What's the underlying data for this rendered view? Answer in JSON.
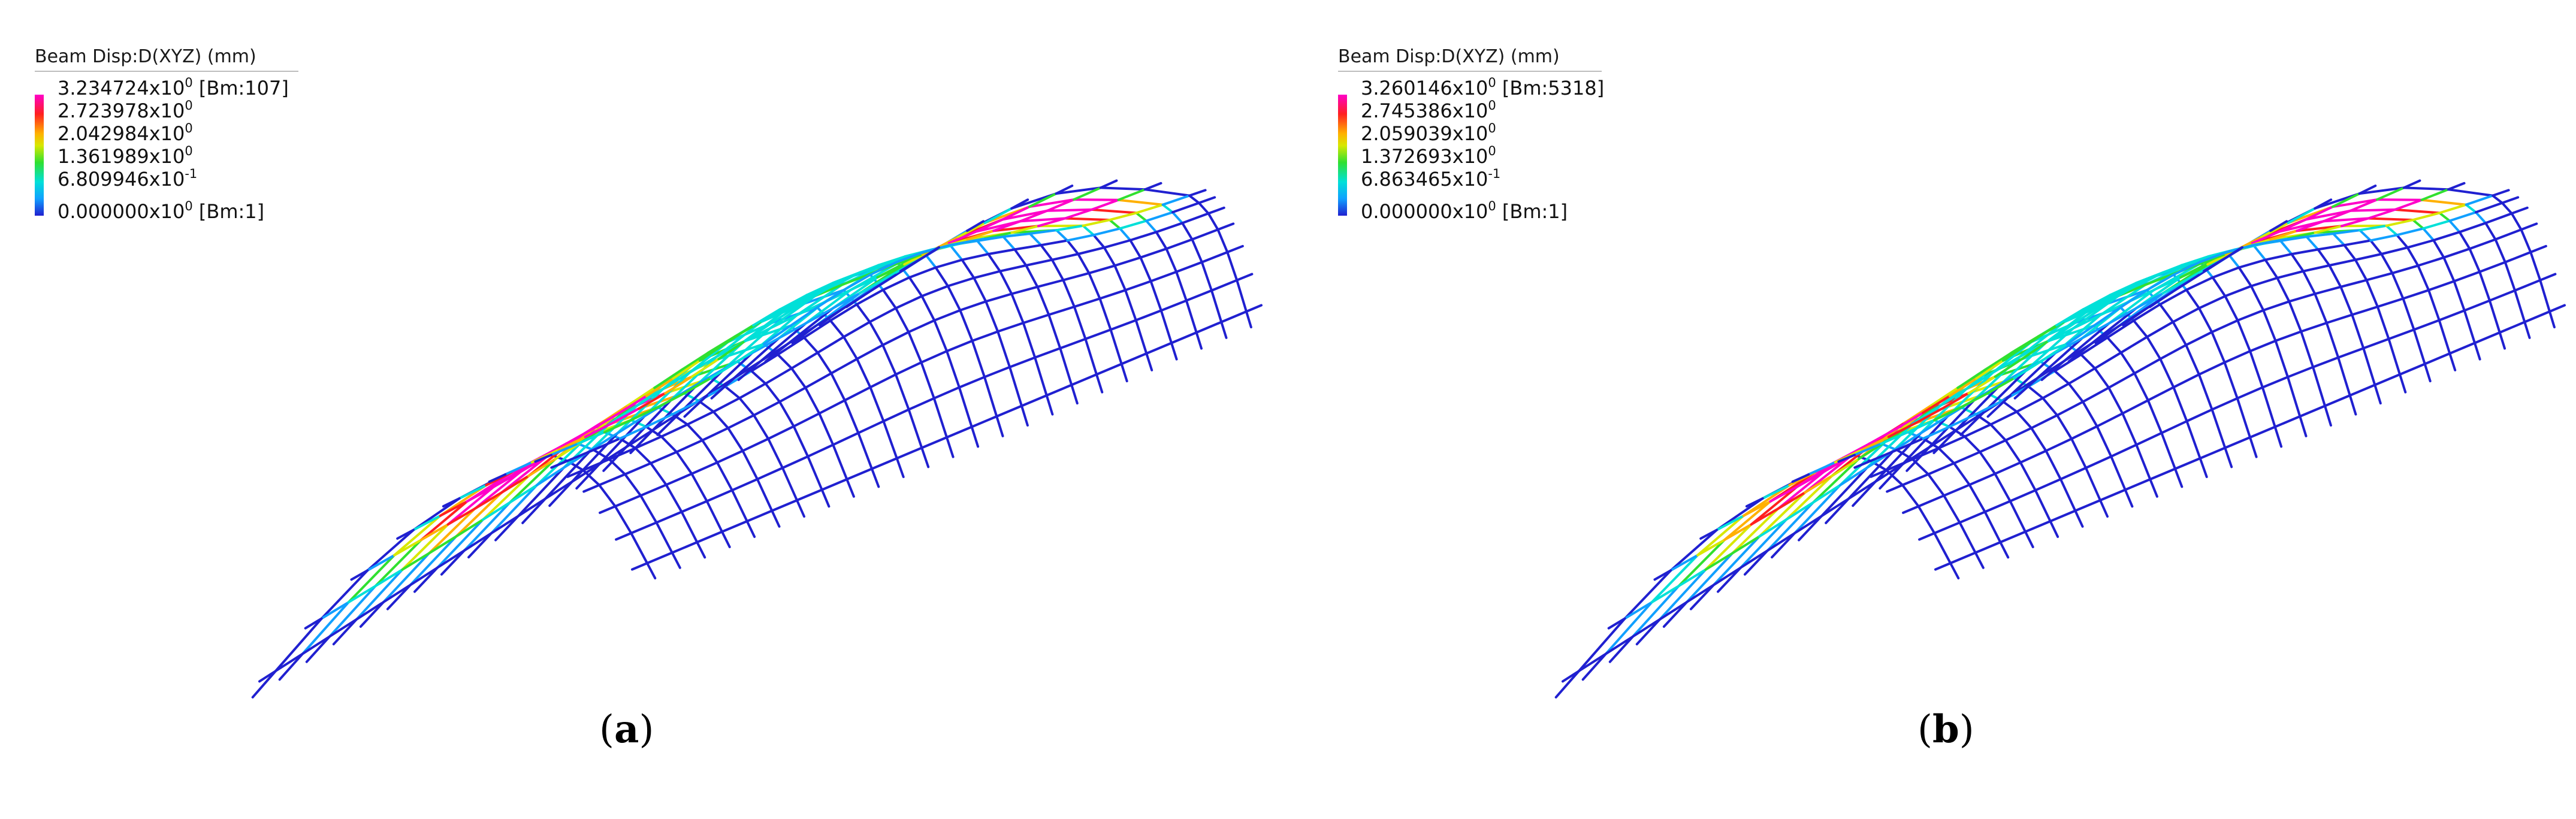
{
  "colors": {
    "scale": [
      "#2020d0",
      "#10a0ff",
      "#00e0d8",
      "#30e030",
      "#d8e800",
      "#ffb000",
      "#ff2020",
      "#ff00c8"
    ]
  },
  "panels": [
    {
      "legend": {
        "title": "Beam Disp:D(XYZ)  (mm)",
        "rows": [
          {
            "mant": "3.234724x10",
            "exp": "0",
            "suffix": " [Bm:107]"
          },
          {
            "mant": "2.723978x10",
            "exp": "0",
            "suffix": ""
          },
          {
            "mant": "2.042984x10",
            "exp": "0",
            "suffix": ""
          },
          {
            "mant": "1.361989x10",
            "exp": "0",
            "suffix": ""
          },
          {
            "mant": "6.809946x10",
            "exp": "-1",
            "suffix": ""
          },
          {
            "mant": "0.000000x10",
            "exp": "0",
            "suffix": " [Bm:1]"
          }
        ]
      },
      "caption": {
        "open": "(",
        "letter": "a",
        "close": ")"
      }
    },
    {
      "legend": {
        "title": "Beam Disp:D(XYZ)  (mm)",
        "rows": [
          {
            "mant": "3.260146x10",
            "exp": "0",
            "suffix": " [Bm:5318]"
          },
          {
            "mant": "2.745386x10",
            "exp": "0",
            "suffix": ""
          },
          {
            "mant": "2.059039x10",
            "exp": "0",
            "suffix": ""
          },
          {
            "mant": "1.372693x10",
            "exp": "0",
            "suffix": ""
          },
          {
            "mant": "6.863465x10",
            "exp": "-1",
            "suffix": ""
          },
          {
            "mant": "0.000000x10",
            "exp": "0",
            "suffix": " [Bm:1]"
          }
        ]
      },
      "caption": {
        "open": "(",
        "letter": "b",
        "close": ")"
      }
    }
  ]
}
